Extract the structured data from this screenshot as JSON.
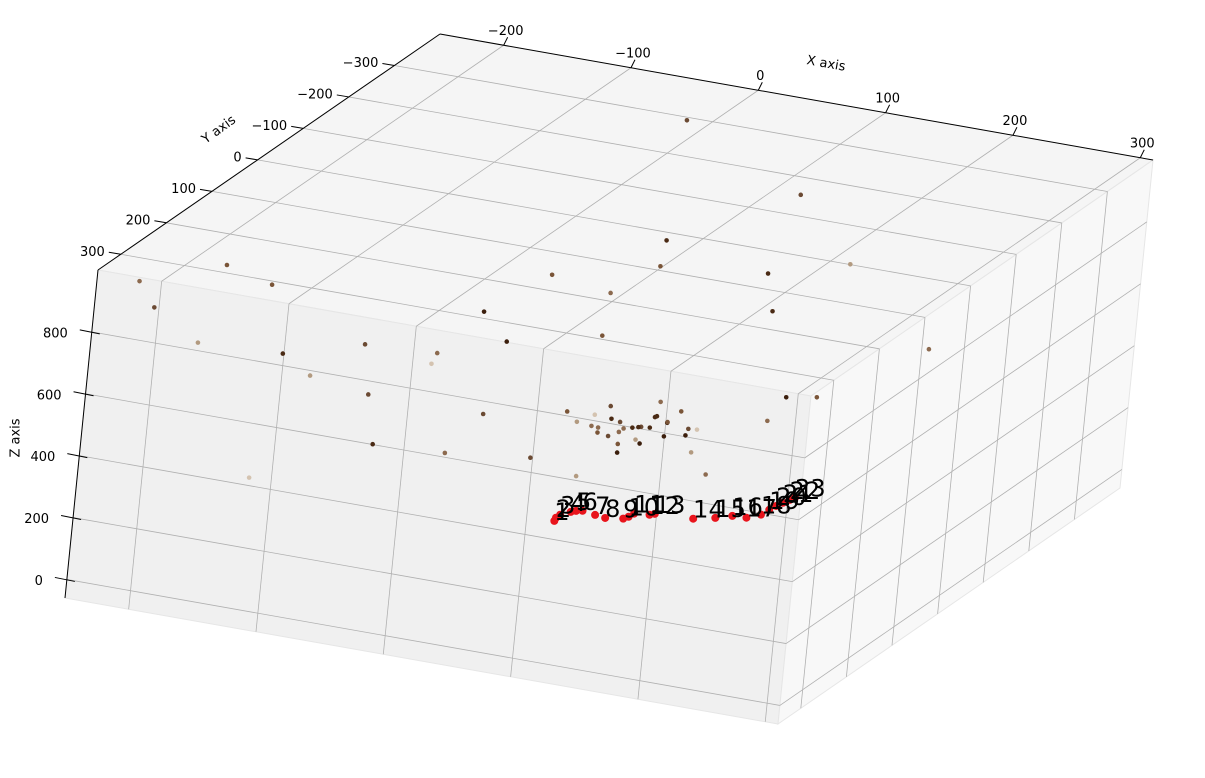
{
  "chart_data": {
    "type": "scatter3d",
    "xlabel": "X axis",
    "ylabel": "Y axis",
    "zlabel": "Z axis",
    "xlim": [
      -250,
      310
    ],
    "ylim": [
      -400,
      350
    ],
    "zlim": [
      -60,
      1000
    ],
    "xticks": [
      {
        "value": -200,
        "label": "−200"
      },
      {
        "value": -100,
        "label": "−100"
      },
      0,
      100,
      200,
      300
    ],
    "yticks": [
      {
        "value": -300,
        "label": "−300"
      },
      {
        "value": -200,
        "label": "−200"
      },
      {
        "value": -100,
        "label": "−100"
      },
      0,
      100,
      200,
      300
    ],
    "zticks": [
      0,
      200,
      400,
      600,
      800
    ],
    "grid": true,
    "series": [
      {
        "x": [
          60,
          70,
          50,
          80,
          40,
          65,
          75,
          55,
          45,
          85,
          30,
          90,
          35,
          100,
          20,
          60,
          70,
          50,
          80,
          40,
          95,
          25,
          110,
          15,
          65,
          55,
          75,
          45,
          85,
          62,
          -120,
          -80,
          -200,
          -180,
          -150,
          -100,
          -60,
          -30,
          0,
          20,
          120,
          150,
          -20,
          -10,
          180,
          200,
          160,
          140,
          -220,
          -240,
          -200,
          -150,
          -90,
          -50,
          -130,
          -70,
          10,
          40,
          0,
          110,
          130,
          -40,
          -160,
          90,
          250
        ],
        "y": [
          0,
          10,
          -10,
          -20,
          20,
          5,
          -5,
          15,
          -15,
          0,
          0,
          10,
          -25,
          -10,
          10,
          30,
          -30,
          0,
          20,
          -5,
          -20,
          -10,
          0,
          20,
          -40,
          40,
          25,
          35,
          -35,
          -8,
          100,
          50,
          250,
          150,
          200,
          0,
          -50,
          80,
          -100,
          -150,
          -100,
          -200,
          -300,
          -250,
          50,
          0,
          -50,
          100,
          300,
          280,
          200,
          250,
          150,
          100,
          50,
          -20,
          -60,
          60,
          50,
          -150,
          30,
          -80,
          100,
          -250,
          -100
        ],
        "z": [
          360,
          380,
          340,
          370,
          350,
          330,
          400,
          390,
          320,
          350,
          380,
          410,
          345,
          375,
          360,
          310,
          420,
          300,
          395,
          410,
          340,
          330,
          390,
          400,
          360,
          370,
          345,
          385,
          395,
          355,
          600,
          550,
          700,
          800,
          650,
          450,
          500,
          420,
          650,
          700,
          800,
          750,
          990,
          660,
          520,
          560,
          480,
          440,
          850,
          900,
          900,
          300,
          350,
          300,
          380,
          620,
          560,
          250,
          270,
          620,
          290,
          700,
          470,
          880,
          650
        ],
        "colors": [
          "#4a2a14",
          "#6b4a33",
          "#8c6a4f",
          "#3b1e0c",
          "#7a5538",
          "#b29a80",
          "#4a2a14",
          "#6b4a33",
          "#8c6a4f",
          "#3b1e0c",
          "#d4c3b0",
          "#7a5538",
          "#4a2a14",
          "#6b4a33",
          "#b29a80",
          "#3b1e0c",
          "#8c6a4f",
          "#7a5538",
          "#4a2a14",
          "#6b4a33",
          "#3b1e0c",
          "#8c6a4f",
          "#d4c3b0",
          "#7a5538",
          "#4a2a14",
          "#6b4a33",
          "#3b1e0c",
          "#8c6a4f",
          "#7a5538",
          "#4a2a14",
          "#6b4a33",
          "#8c6a4f",
          "#b29a80",
          "#7a5538",
          "#4a2a14",
          "#d4c3b0",
          "#3b1e0c",
          "#6b4a33",
          "#8c6a4f",
          "#7a5538",
          "#4a2a14",
          "#b29a80",
          "#6b4a33",
          "#4a2a14",
          "#8c6a4f",
          "#7a5538",
          "#3b1e0c",
          "#b29a80",
          "#6b4a33",
          "#8c6a4f",
          "#7a5538",
          "#d4c3b0",
          "#4a2a14",
          "#8c6a4f",
          "#6b4a33",
          "#3b1e0c",
          "#7a5538",
          "#b29a80",
          "#6b4a33",
          "#4a2a14",
          "#8c6a4f",
          "#7a5538",
          "#b29a80",
          "#6b4a33",
          "#8c6a4f"
        ]
      },
      {
        "x": [
          7,
          8,
          11,
          19,
          23,
          28,
          38,
          46,
          60,
          64,
          68,
          80,
          84,
          114,
          131,
          144,
          155,
          166,
          172,
          177,
          182,
          187,
          191
        ],
        "y": [
          0,
          0,
          0,
          0,
          0,
          0,
          0,
          0,
          0,
          0,
          0,
          0,
          0,
          0,
          0,
          0,
          0,
          0,
          0,
          0,
          0,
          0,
          0
        ],
        "z": [
          20,
          31,
          43,
          58,
          64,
          68,
          62,
          58,
          66,
          75,
          88,
          93,
          99,
          105,
          120,
          136,
          138,
          156,
          176,
          192,
          206,
          219,
          229
        ],
        "color": "#e8141c",
        "labels": [
          "1",
          "2",
          "3",
          "4",
          "5",
          "6",
          "7",
          "8",
          "9",
          "10",
          "11",
          "12",
          "13",
          "14",
          "15",
          "16",
          "17",
          "18",
          "19",
          "20",
          "21",
          "22",
          "23"
        ]
      }
    ]
  }
}
